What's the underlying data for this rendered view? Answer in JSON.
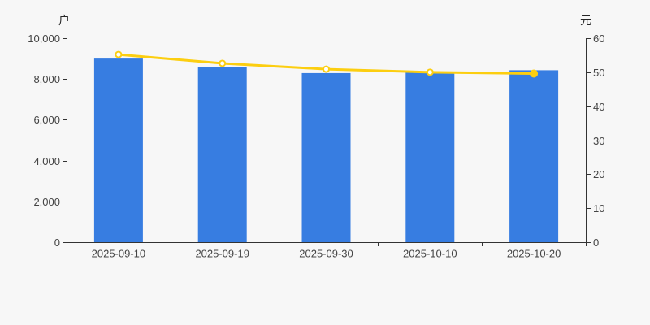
{
  "colors": {
    "background": "#f7f7f7",
    "axis_line": "#333333",
    "tick_text": "#444444",
    "axis_name_text": "#262626",
    "bar": "#377de1",
    "line": "#fcce10",
    "marker_fill": "#ffffff"
  },
  "chart_data": {
    "type": "bar",
    "subtype": "bar+line dual-axis combo",
    "title": "",
    "grid": false,
    "legend": false,
    "categories": [
      "2025-09-10",
      "2025-09-19",
      "2025-09-30",
      "2025-10-10",
      "2025-10-20"
    ],
    "series": [
      {
        "type": "bar",
        "y_axis": "left",
        "color": "#377de1",
        "values": [
          9000,
          8590,
          8290,
          8330,
          8430
        ]
      },
      {
        "type": "line",
        "y_axis": "right",
        "color": "#fcce10",
        "values": [
          55.2,
          52.6,
          50.9,
          50.0,
          49.6
        ],
        "marker": "hollow-circle",
        "last_point_filled": true
      }
    ],
    "left_axis": {
      "name": "户",
      "min": 0,
      "max": 10000,
      "tick_labels": [
        "0",
        "2,000",
        "4,000",
        "6,000",
        "8,000",
        "10,000"
      ]
    },
    "right_axis": {
      "name": "元",
      "min": 0,
      "max": 60,
      "tick_labels": [
        "0",
        "10",
        "20",
        "30",
        "40",
        "50",
        "60"
      ]
    },
    "x_axis": {
      "tick_labels": [
        "2025-09-10",
        "2025-09-19",
        "2025-09-30",
        "2025-10-10",
        "2025-10-20"
      ]
    }
  }
}
